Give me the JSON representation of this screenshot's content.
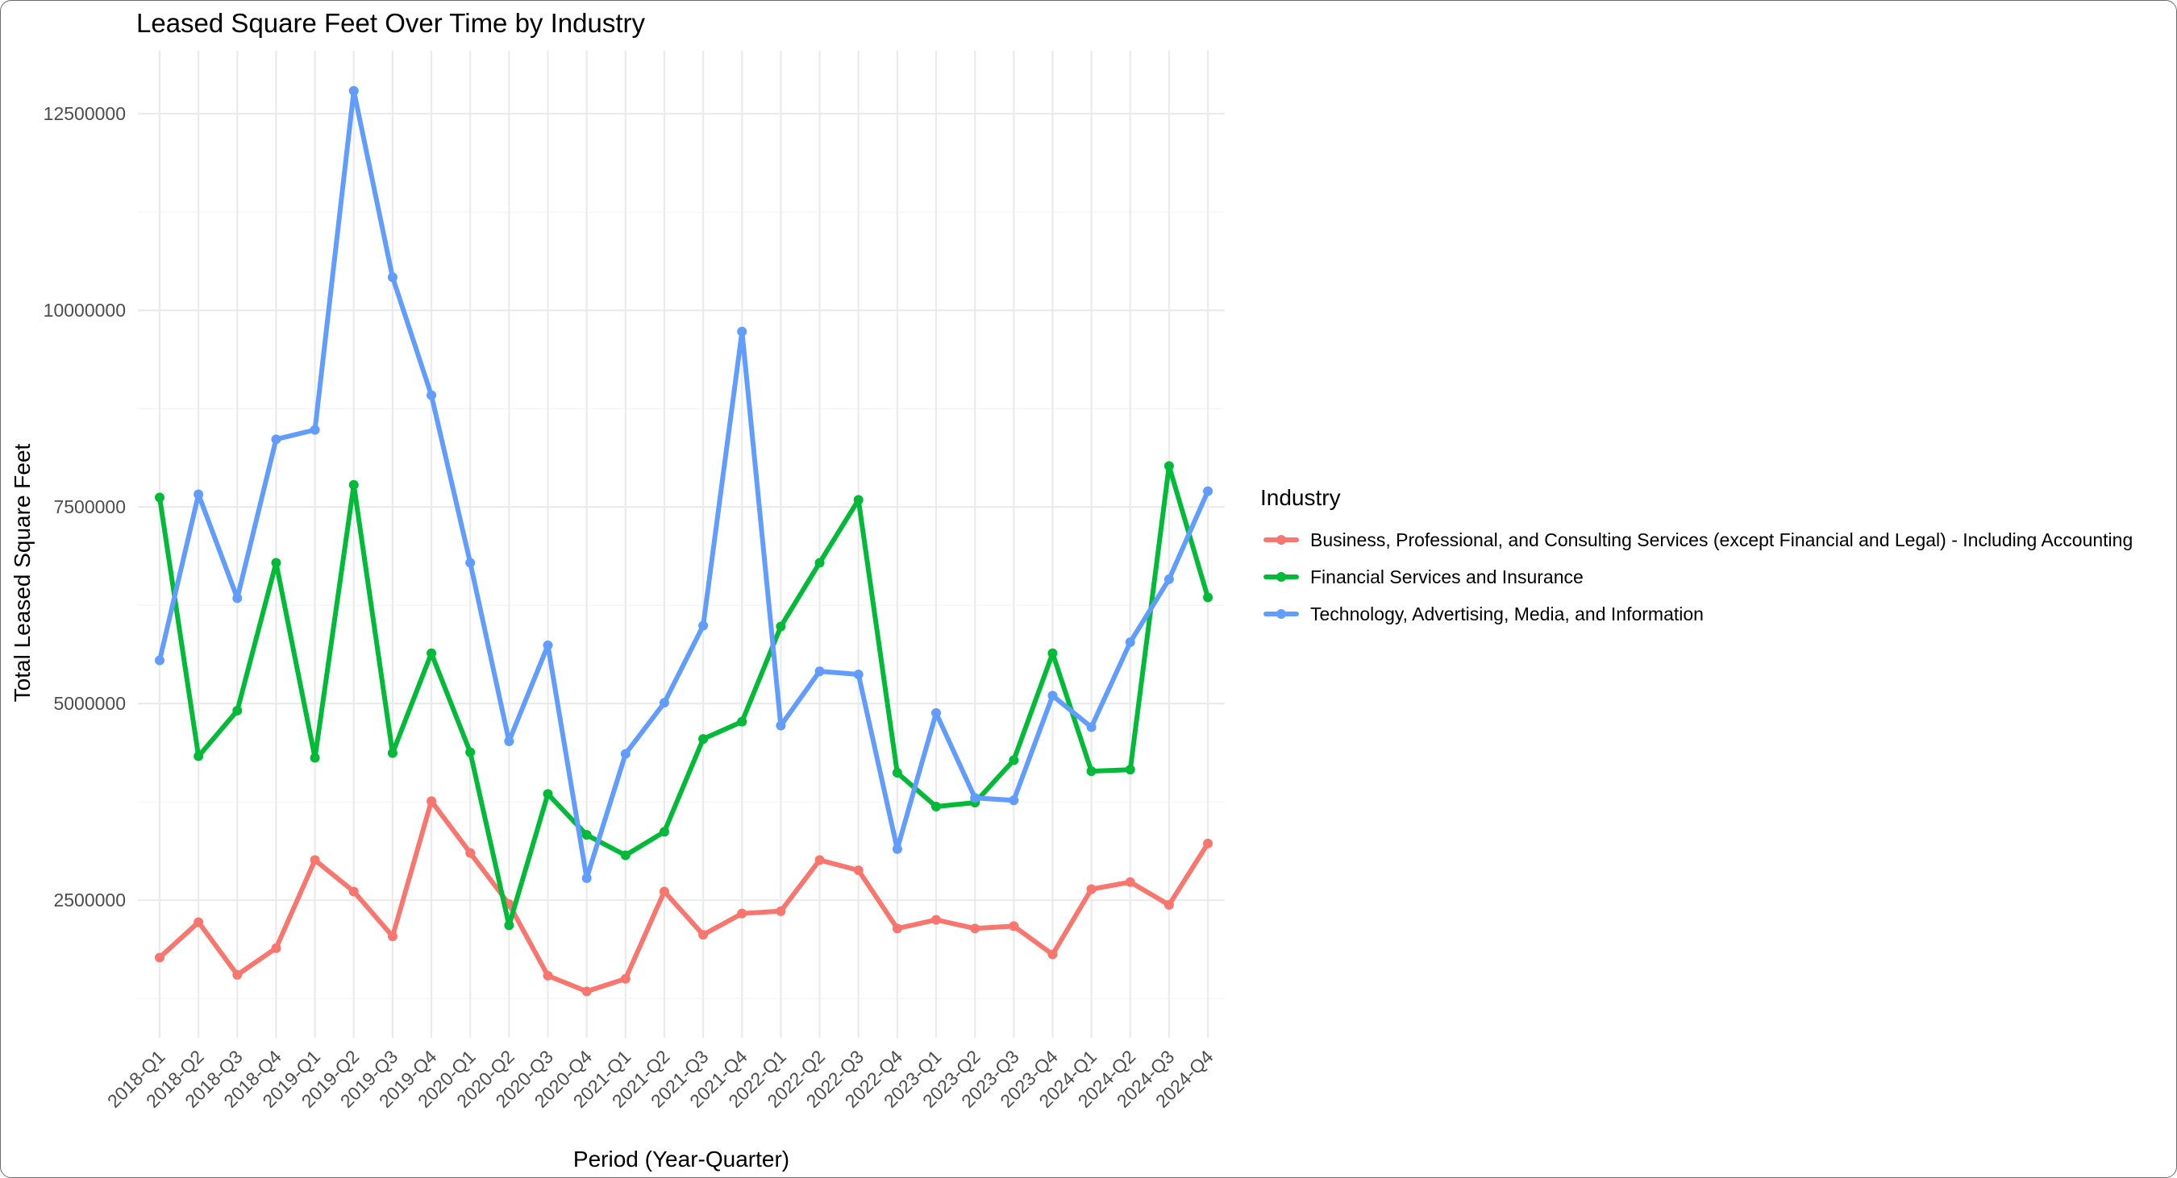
{
  "chart_data": {
    "type": "line",
    "title": "Leased Square Feet Over Time by Industry",
    "xlabel": "Period (Year-Quarter)",
    "ylabel": "Total Leased Square Feet",
    "ylim": [
      750000,
      13300000
    ],
    "y_ticks": [
      2500000,
      5000000,
      7500000,
      10000000,
      12500000
    ],
    "grid": true,
    "legend_title": "Industry",
    "legend_position": "right",
    "categories": [
      "2018-Q1",
      "2018-Q2",
      "2018-Q3",
      "2018-Q4",
      "2019-Q1",
      "2019-Q2",
      "2019-Q3",
      "2019-Q4",
      "2020-Q1",
      "2020-Q2",
      "2020-Q3",
      "2020-Q4",
      "2021-Q1",
      "2021-Q2",
      "2021-Q3",
      "2021-Q4",
      "2022-Q1",
      "2022-Q2",
      "2022-Q3",
      "2022-Q4",
      "2023-Q1",
      "2023-Q2",
      "2023-Q3",
      "2023-Q4",
      "2024-Q1",
      "2024-Q2",
      "2024-Q3",
      "2024-Q4"
    ],
    "series": [
      {
        "name": "Business, Professional, and Consulting Services (except Financial and Legal) - Including Accounting",
        "color": "#F8766D",
        "values": [
          1770000,
          2220000,
          1550000,
          1890000,
          3010000,
          2610000,
          2040000,
          3760000,
          3100000,
          2450000,
          1540000,
          1340000,
          1500000,
          2610000,
          2060000,
          2330000,
          2360000,
          3010000,
          2880000,
          2140000,
          2250000,
          2140000,
          2170000,
          1810000,
          2640000,
          2730000,
          2440000,
          3220000
        ]
      },
      {
        "name": "Financial Services and Insurance",
        "color": "#00BA38",
        "values": [
          7620000,
          4330000,
          4910000,
          6790000,
          4310000,
          7780000,
          4370000,
          5640000,
          4380000,
          2180000,
          3850000,
          3330000,
          3070000,
          3370000,
          4550000,
          4770000,
          5980000,
          6790000,
          7590000,
          4120000,
          3690000,
          3740000,
          4280000,
          5640000,
          4140000,
          4160000,
          8020000,
          6350000
        ]
      },
      {
        "name": "Technology, Advertising, Media, and Information",
        "color": "#619CFF",
        "values": [
          5550000,
          7660000,
          6340000,
          8360000,
          8480000,
          12790000,
          10420000,
          8920000,
          6790000,
          4520000,
          5740000,
          2780000,
          4360000,
          5010000,
          5990000,
          9730000,
          4720000,
          5410000,
          5370000,
          3150000,
          4880000,
          3800000,
          3770000,
          5100000,
          4700000,
          5780000,
          6580000,
          7700000
        ]
      }
    ]
  }
}
